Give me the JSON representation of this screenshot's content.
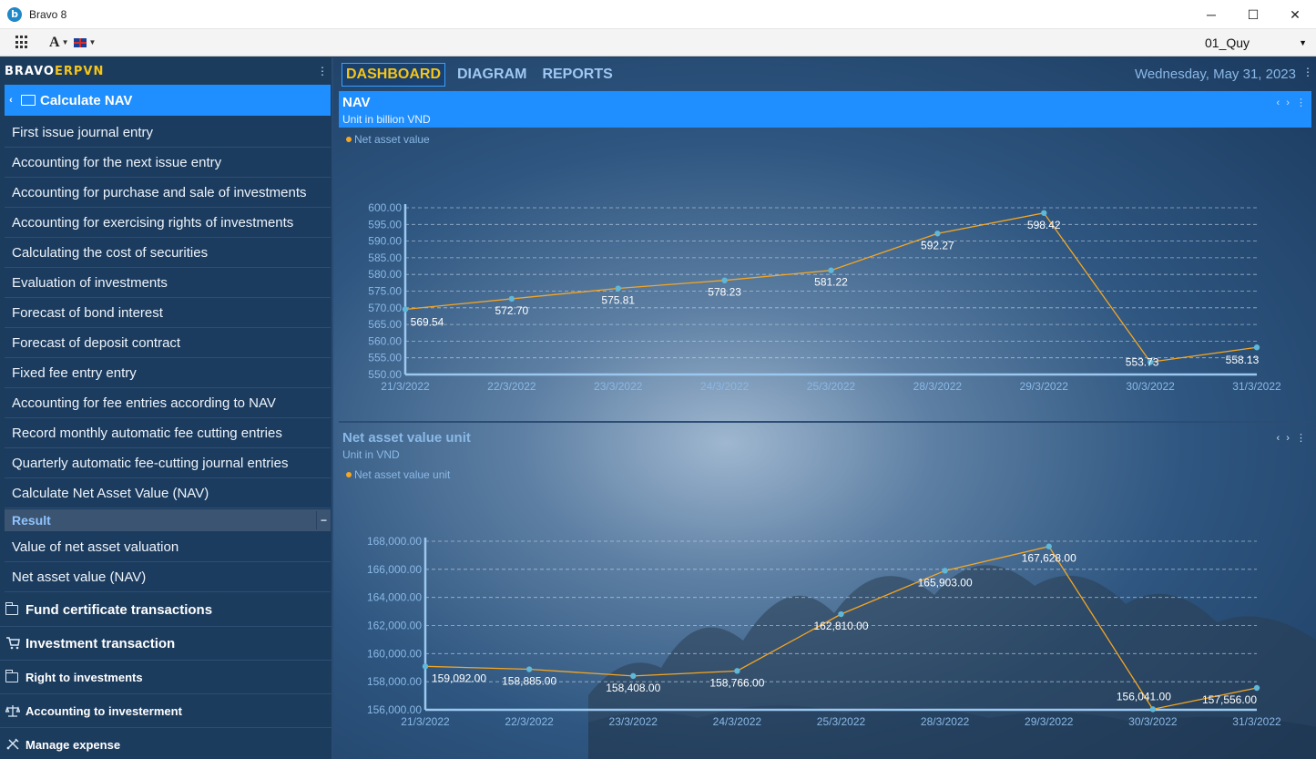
{
  "window": {
    "title": "Bravo 8",
    "minimize": "─",
    "maximize": "☐",
    "close": "✕"
  },
  "toolbar": {
    "font_label": "A",
    "period": "01_Quy"
  },
  "sidebar": {
    "logo_main": "BRAVO",
    "logo_accent": "ERPVN",
    "module_title": "Calculate NAV",
    "items": [
      "First issue journal entry",
      "Accounting for the next issue entry",
      "Accounting for purchase and sale of investments",
      "Accounting for exercising rights of investments",
      "Calculating the cost of securities",
      "Evaluation of investments",
      "Forecast of bond interest",
      "Forecast of deposit contract",
      "Fixed fee entry entry",
      "Accounting for fee entries according to NAV",
      "Record monthly automatic fee cutting entries",
      "Quarterly automatic fee-cutting journal entries",
      "Calculate Net Asset Value (NAV)"
    ],
    "result_header": "Result",
    "result_items": [
      "Value of net asset valuation",
      "Net asset value (NAV)"
    ],
    "groups": [
      {
        "label": "Fund certificate transactions",
        "icon": "folder-icon"
      },
      {
        "label": "Investment transaction",
        "icon": "cart-icon"
      },
      {
        "label": "Right to investments",
        "icon": "folder-icon"
      },
      {
        "label": "Accounting to investerment",
        "icon": "scale-icon"
      },
      {
        "label": "Manage expense",
        "icon": "tools-icon"
      }
    ]
  },
  "main": {
    "tabs": [
      "DASHBOARD",
      "DIAGRAM",
      "REPORTS"
    ],
    "date": "Wednesday, May 31, 2023"
  },
  "colors": {
    "accent": "#1f8fff",
    "line": "#f5a623",
    "marker": "#5fb8d8"
  },
  "chart_data": [
    {
      "type": "line",
      "title": "NAV",
      "subtitle": "Unit in billion VND",
      "series": [
        {
          "name": "Net asset value",
          "values": [
            569.54,
            572.7,
            575.81,
            578.23,
            581.22,
            592.27,
            598.42,
            553.73,
            558.13
          ]
        }
      ],
      "categories": [
        "21/3/2022",
        "22/3/2022",
        "23/3/2022",
        "24/3/2022",
        "25/3/2022",
        "28/3/2022",
        "29/3/2022",
        "30/3/2022",
        "31/3/2022"
      ],
      "data_labels": [
        "569.54",
        "572.70",
        "575.81",
        "578.23",
        "581.22",
        "592.27",
        "598.42",
        "553.73",
        "558.13"
      ],
      "y_ticks": [
        "550.00",
        "555.00",
        "560.00",
        "565.00",
        "570.00",
        "575.00",
        "580.00",
        "585.00",
        "590.00",
        "595.00",
        "600.00"
      ],
      "ylim": [
        550,
        600
      ],
      "grid": true,
      "legend": "top-left"
    },
    {
      "type": "line",
      "title": "Net asset value unit",
      "subtitle": "Unit in  VND",
      "series": [
        {
          "name": "Net asset value unit",
          "values": [
            159092,
            158885,
            158408,
            158766,
            162810,
            165903,
            167628,
            156041,
            157556
          ]
        }
      ],
      "categories": [
        "21/3/2022",
        "22/3/2022",
        "23/3/2022",
        "24/3/2022",
        "25/3/2022",
        "28/3/2022",
        "29/3/2022",
        "30/3/2022",
        "31/3/2022"
      ],
      "data_labels": [
        "159,092.00",
        "158,885.00",
        "158,408.00",
        "158,766.00",
        "162,810.00",
        "165,903.00",
        "167,628.00",
        "156,041.00",
        "157,556.00"
      ],
      "y_ticks": [
        "156,000.00",
        "158,000.00",
        "160,000.00",
        "162,000.00",
        "164,000.00",
        "166,000.00",
        "168,000.00"
      ],
      "ylim": [
        156000,
        168000
      ],
      "grid": true,
      "legend": "top-left"
    }
  ]
}
